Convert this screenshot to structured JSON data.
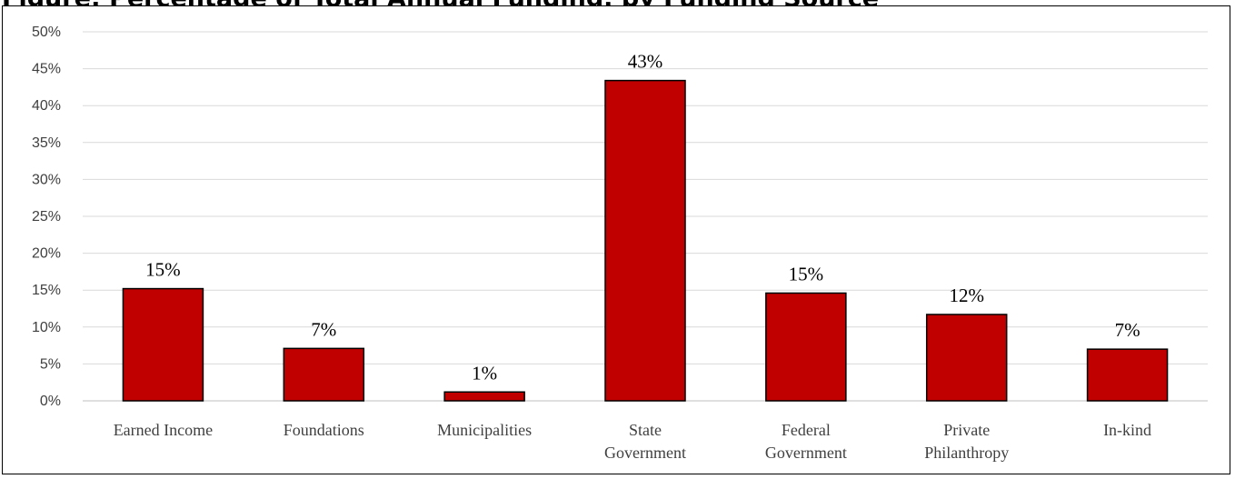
{
  "chart_data": {
    "type": "bar",
    "title": "Figure: Percentage of Total Annual Funding, by Funding Source",
    "categories": [
      [
        "Earned Income"
      ],
      [
        "Foundations"
      ],
      [
        "Municipalities"
      ],
      [
        "State",
        "Government"
      ],
      [
        "Federal",
        "Government"
      ],
      [
        "Private",
        "Philanthropy"
      ],
      [
        "In-kind"
      ]
    ],
    "values": [
      15.2,
      7.1,
      1.2,
      43.4,
      14.6,
      11.7,
      7.0
    ],
    "data_labels": [
      "15%",
      "7%",
      "1%",
      "43%",
      "15%",
      "12%",
      "7%"
    ],
    "y_ticks": [
      "0%",
      "5%",
      "10%",
      "15%",
      "20%",
      "25%",
      "30%",
      "35%",
      "40%",
      "45%",
      "50%"
    ],
    "ylim": [
      0,
      50
    ],
    "grid": true,
    "legend": "none",
    "bar_color": "#C00000",
    "bar_edge_color": "#000000",
    "grid_color": "#D9D9D9"
  }
}
